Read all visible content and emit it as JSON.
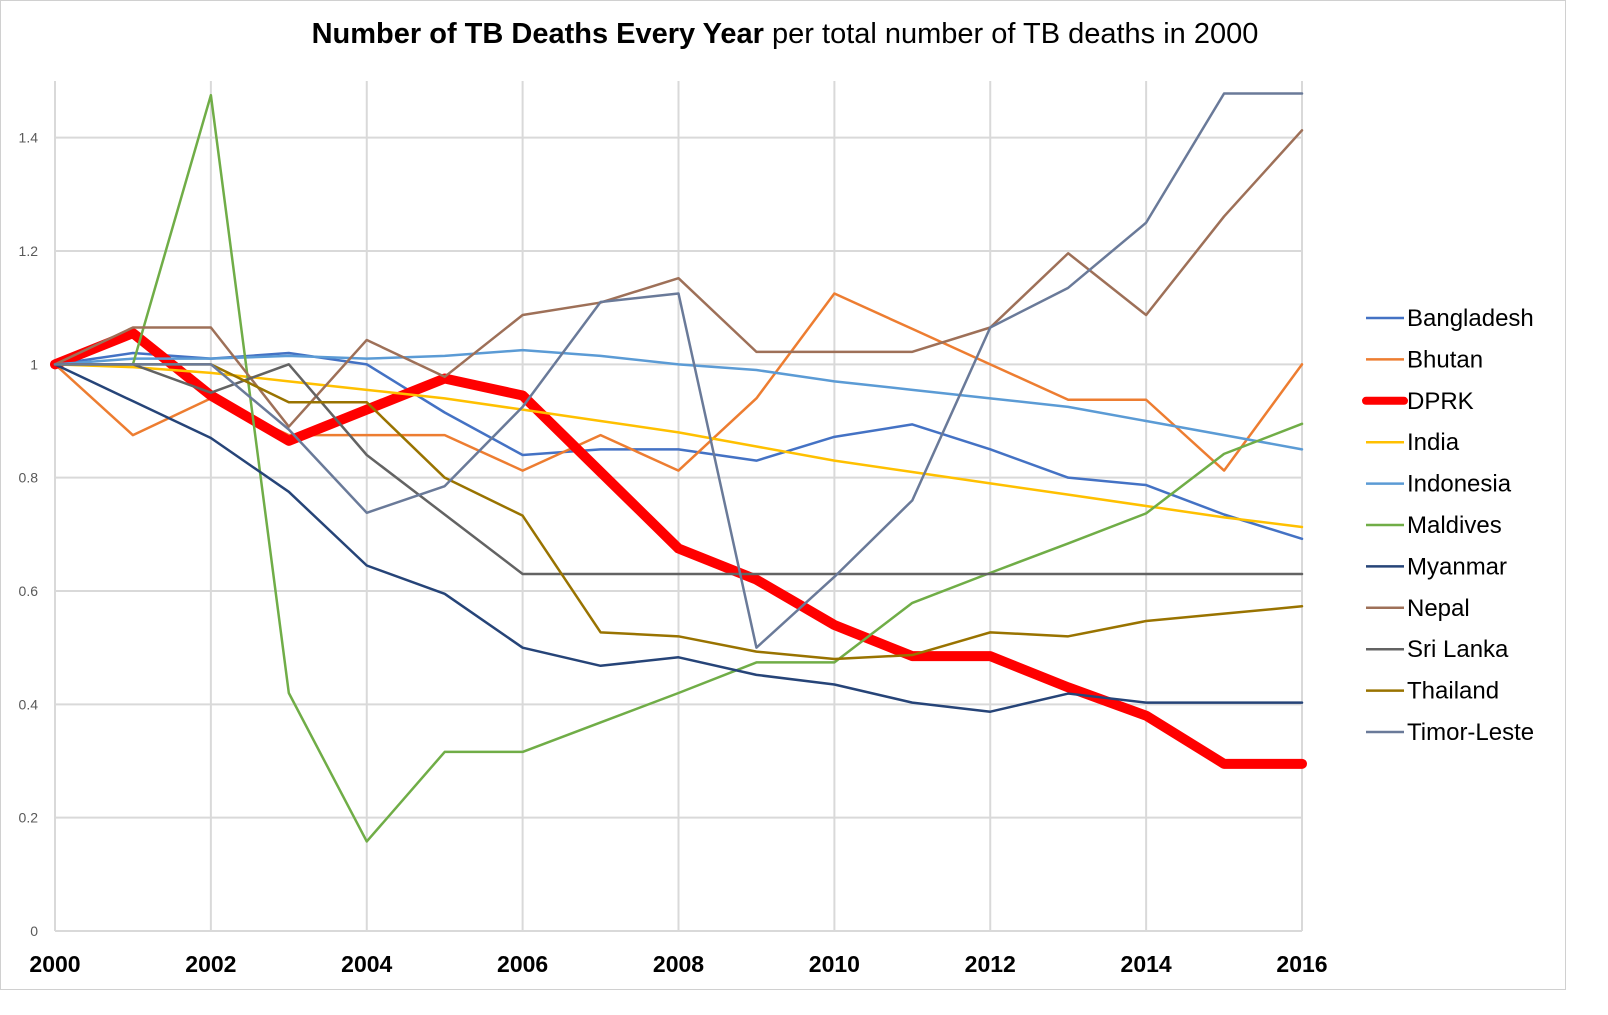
{
  "chart_data": {
    "type": "line",
    "title_bold": "Number of TB Deaths Every Year",
    "title_rest": "per total number of TB deaths in 2000",
    "xlabel": "",
    "ylabel": "",
    "x": [
      2000,
      2001,
      2002,
      2003,
      2004,
      2005,
      2006,
      2007,
      2008,
      2009,
      2010,
      2011,
      2012,
      2013,
      2014,
      2015,
      2016
    ],
    "x_tick_labels": [
      "2000",
      "2002",
      "2004",
      "2006",
      "2008",
      "2010",
      "2012",
      "2014",
      "2016"
    ],
    "y_tick_labels": [
      "0",
      "0.2",
      "0.4",
      "0.6",
      "0.8",
      "1",
      "1.2",
      "1.4"
    ],
    "ylim": [
      0,
      1.5
    ],
    "xlim": [
      2000,
      2016
    ],
    "grid": true,
    "legend_position": "right",
    "series": [
      {
        "name": "Bangladesh",
        "color": "#4472C4",
        "width": 2.5,
        "values": [
          1,
          1.02,
          1.01,
          1.02,
          1.0,
          0.915,
          0.84,
          0.85,
          0.85,
          0.83,
          0.872,
          0.894,
          0.85,
          0.8,
          0.787,
          0.735,
          0.692
        ]
      },
      {
        "name": "Bhutan",
        "color": "#ED7D31",
        "width": 2.5,
        "values": [
          1,
          0.875,
          0.94,
          0.875,
          0.875,
          0.875,
          0.8125,
          0.875,
          0.8125,
          0.94,
          1.125,
          1.0625,
          1.0,
          0.9375,
          0.9375,
          0.8125,
          1.0
        ]
      },
      {
        "name": "DPRK",
        "color": "#FF0000",
        "width": 10,
        "values": [
          1,
          1.055,
          0.945,
          0.865,
          0.92,
          0.975,
          0.945,
          0.81,
          0.675,
          0.62,
          0.54,
          0.485,
          0.485,
          0.43,
          0.38,
          0.295,
          0.295
        ]
      },
      {
        "name": "India",
        "color": "#FFC000",
        "width": 2.5,
        "values": [
          1,
          0.995,
          0.985,
          0.97,
          0.955,
          0.94,
          0.92,
          0.9,
          0.88,
          0.855,
          0.83,
          0.81,
          0.79,
          0.77,
          0.75,
          0.73,
          0.713
        ]
      },
      {
        "name": "Indonesia",
        "color": "#5B9BD5",
        "width": 2.5,
        "values": [
          1,
          1.01,
          1.01,
          1.015,
          1.01,
          1.015,
          1.025,
          1.015,
          1.0,
          0.99,
          0.97,
          0.955,
          0.94,
          0.925,
          0.9,
          0.875,
          0.85
        ]
      },
      {
        "name": "Maldives",
        "color": "#70AD47",
        "width": 2.5,
        "values": [
          1,
          1.0,
          1.475,
          0.42,
          0.158,
          0.316,
          0.316,
          0.368,
          0.42,
          0.474,
          0.474,
          0.579,
          0.632,
          0.684,
          0.737,
          0.842,
          0.895
        ]
      },
      {
        "name": "Myanmar",
        "color": "#264478",
        "width": 2.5,
        "values": [
          1,
          0.935,
          0.87,
          0.775,
          0.645,
          0.595,
          0.5,
          0.468,
          0.483,
          0.452,
          0.435,
          0.403,
          0.387,
          0.419,
          0.403,
          0.403,
          0.403
        ]
      },
      {
        "name": "Nepal",
        "color": "#9E7058",
        "width": 2.5,
        "values": [
          1,
          1.065,
          1.065,
          0.89,
          1.043,
          0.978,
          1.087,
          1.109,
          1.152,
          1.022,
          1.022,
          1.022,
          1.065,
          1.196,
          1.087,
          1.261,
          1.413
        ]
      },
      {
        "name": "Sri Lanka",
        "color": "#636363",
        "width": 2.5,
        "values": [
          1,
          1.0,
          0.95,
          1.0,
          0.84,
          0.735,
          0.63,
          0.63,
          0.63,
          0.63,
          0.63,
          0.63,
          0.63,
          0.63,
          0.63,
          0.63,
          0.63
        ]
      },
      {
        "name": "Thailand",
        "color": "#997300",
        "width": 2.5,
        "values": [
          1,
          1.0,
          1.0,
          0.933,
          0.933,
          0.8,
          0.733,
          0.527,
          0.52,
          0.493,
          0.48,
          0.487,
          0.527,
          0.52,
          0.547,
          0.56,
          0.573
        ]
      },
      {
        "name": "Timor-Leste",
        "color": "#6A7A99",
        "width": 2.5,
        "values": [
          1,
          1.0,
          1.0,
          0.885,
          0.738,
          0.785,
          0.925,
          1.11,
          1.125,
          0.5,
          0.625,
          0.76,
          1.065,
          1.135,
          1.25,
          1.478,
          1.478
        ]
      }
    ]
  }
}
